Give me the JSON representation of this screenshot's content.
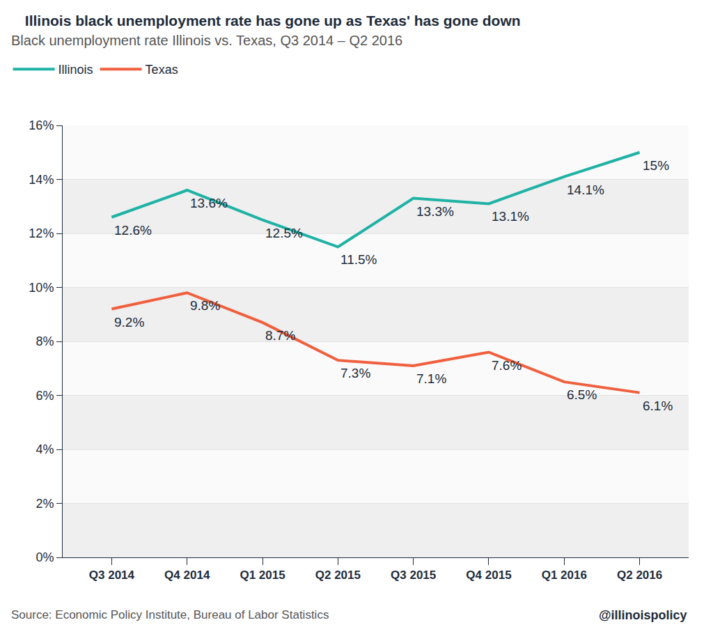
{
  "chart_data": {
    "type": "line",
    "title": "Illinois black unemployment rate has gone up as Texas' has gone down",
    "subtitle": "Black unemployment rate Illinois vs. Texas, Q3 2014 – Q2 2016",
    "source": "Source: Economic Policy Institute, Bureau of Labor Statistics",
    "credit": "@illinoispolicy",
    "categories": [
      "Q3 2014",
      "Q4 2014",
      "Q1 2015",
      "Q2 2015",
      "Q3 2015",
      "Q4 2015",
      "Q1 2016",
      "Q2 2016"
    ],
    "series": [
      {
        "name": "Illinois",
        "color": "#1fb2a5",
        "values": [
          12.6,
          13.6,
          12.5,
          11.5,
          13.3,
          13.1,
          14.1,
          15
        ],
        "value_labels": [
          "12.6%",
          "13.6%",
          "12.5%",
          "11.5%",
          "13.3%",
          "13.1%",
          "14.1%",
          "15%"
        ]
      },
      {
        "name": "Texas",
        "color": "#f0603e",
        "values": [
          9.2,
          9.8,
          8.7,
          7.3,
          7.1,
          7.6,
          6.5,
          6.1
        ],
        "value_labels": [
          "9.2%",
          "9.8%",
          "8.7%",
          "7.3%",
          "7.1%",
          "7.6%",
          "6.5%",
          "6.1%"
        ]
      }
    ],
    "ylim": [
      0,
      16
    ],
    "yticks": [
      {
        "value": 0,
        "label": "0%"
      },
      {
        "value": 2,
        "label": "2%"
      },
      {
        "value": 4,
        "label": "4%"
      },
      {
        "value": 6,
        "label": "6%"
      },
      {
        "value": 8,
        "label": "8%"
      },
      {
        "value": 10,
        "label": "10%"
      },
      {
        "value": 12,
        "label": "12%"
      },
      {
        "value": 14,
        "label": "14%"
      },
      {
        "value": 16,
        "label": "16%"
      }
    ],
    "grid": true,
    "legend": "top-left",
    "data_labels": true
  }
}
